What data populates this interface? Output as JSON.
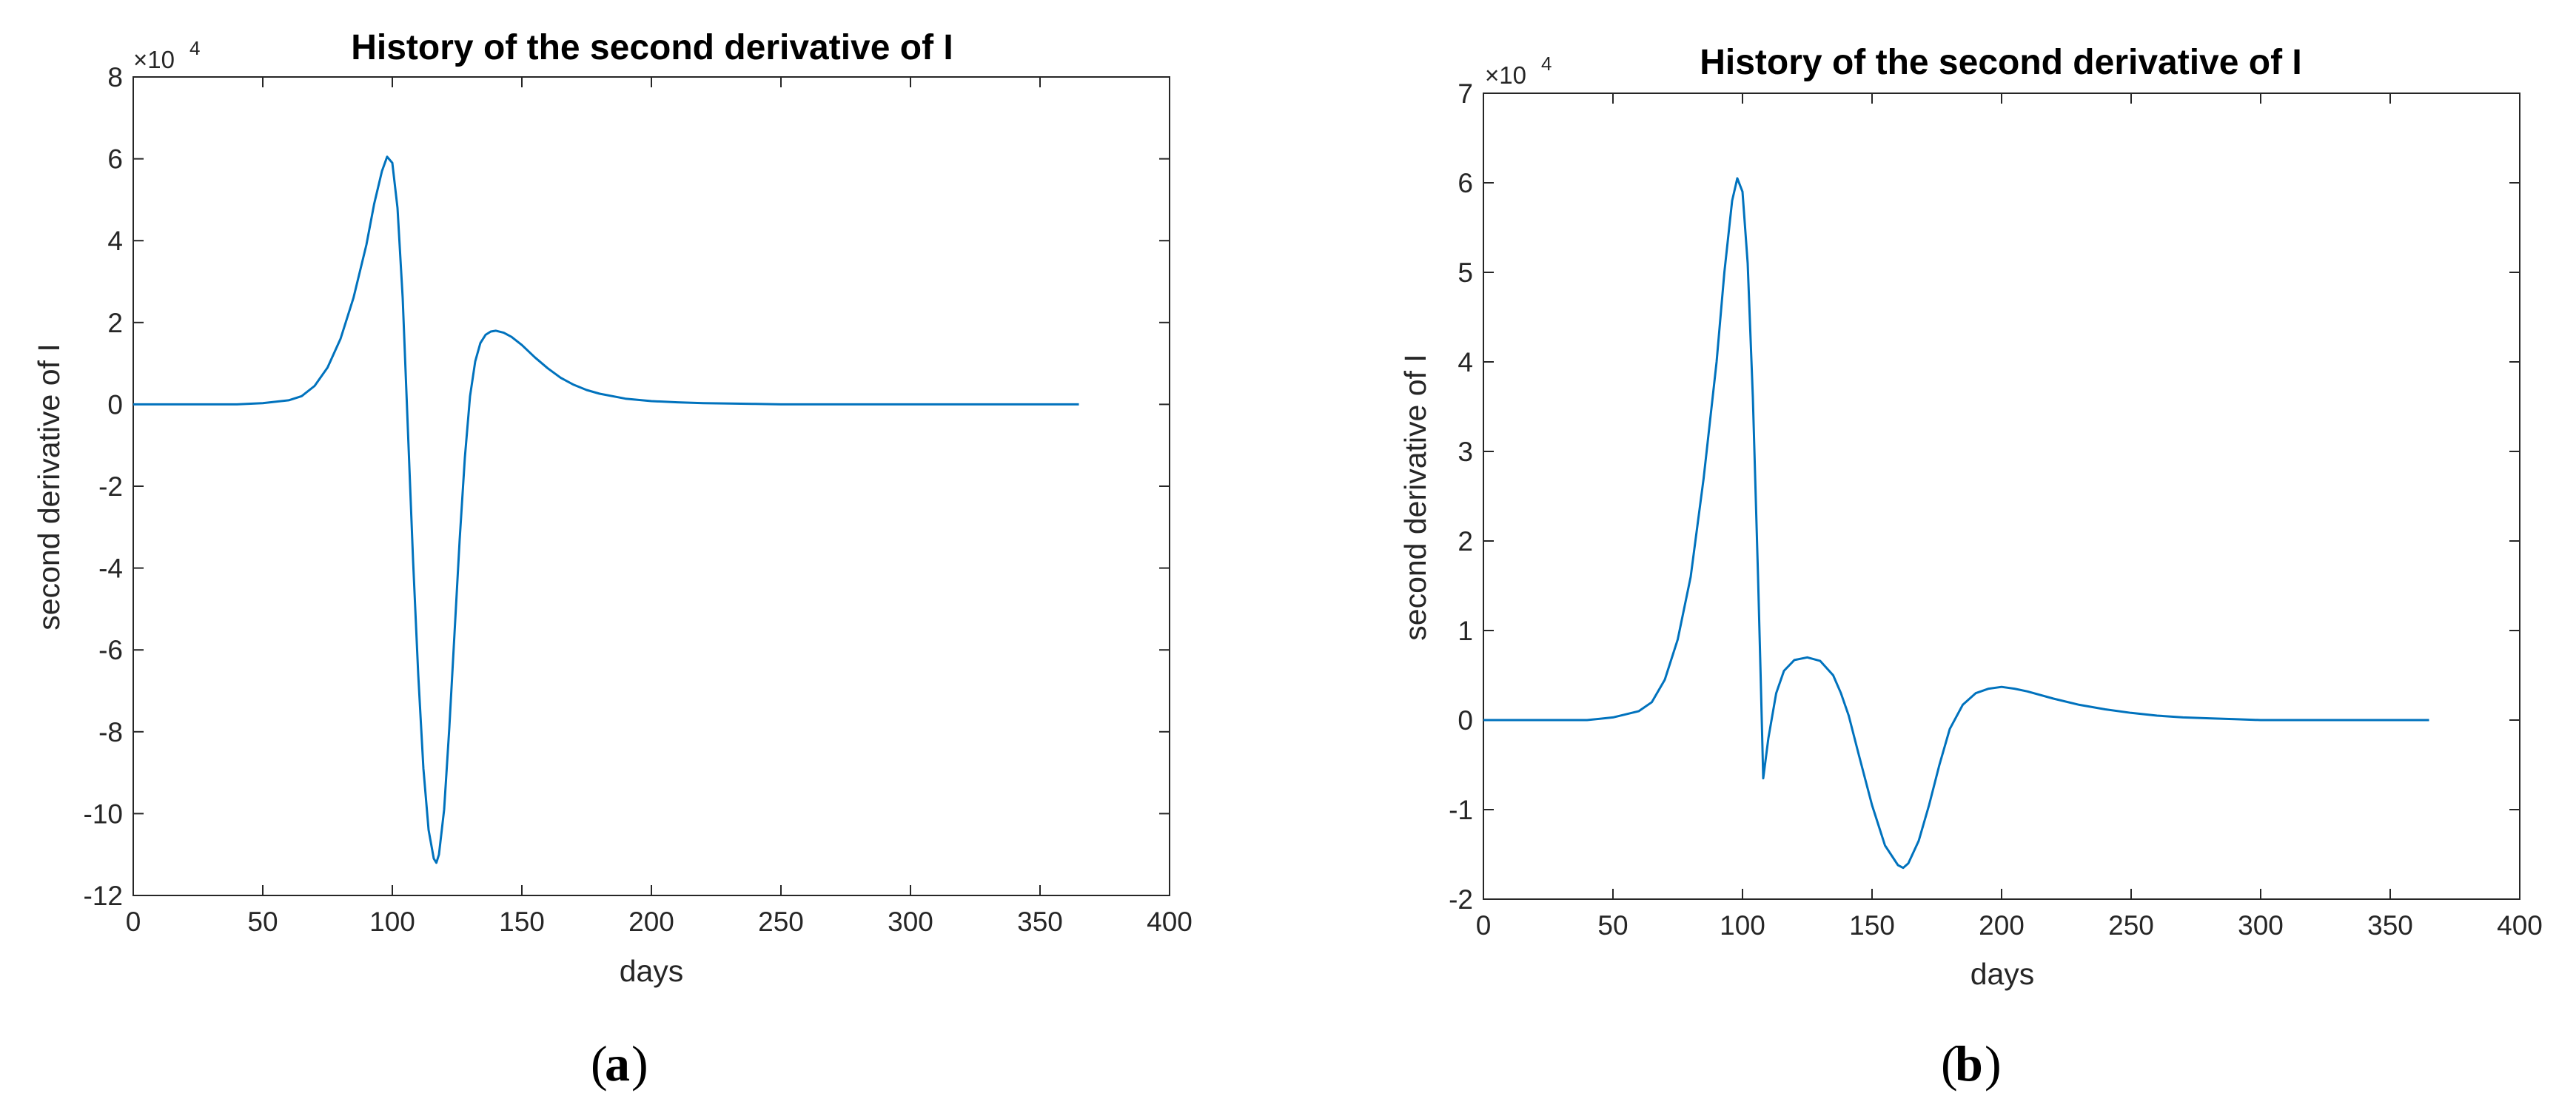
{
  "figure": {
    "background": "#ffffff",
    "line_color": "#0072BD",
    "axis_color": "#262626"
  },
  "chart_data": [
    {
      "type": "line",
      "panel_label": "a",
      "title": "History of the second derivative of I",
      "xlabel": "days",
      "ylabel": "second derivative of I",
      "y_exponent_base": "×10",
      "y_exponent_power": "4",
      "xlim": [
        0,
        400
      ],
      "ylim": [
        -12,
        8
      ],
      "y_scale_factor": 10000,
      "xticks": [
        0,
        50,
        100,
        150,
        200,
        250,
        300,
        350,
        400
      ],
      "yticks": [
        -12,
        -10,
        -8,
        -6,
        -4,
        -2,
        0,
        2,
        4,
        6,
        8
      ],
      "grid": false,
      "series": [
        {
          "color": "#0072BD",
          "x": [
            0,
            40,
            50,
            60,
            65,
            70,
            75,
            80,
            85,
            90,
            93,
            96,
            98,
            100,
            102,
            104,
            106,
            108,
            110,
            112,
            114,
            116,
            117,
            118,
            120,
            122,
            124,
            126,
            128,
            130,
            132,
            134,
            136,
            138,
            140,
            143,
            146,
            150,
            155,
            160,
            165,
            170,
            175,
            180,
            190,
            200,
            210,
            220,
            230,
            240,
            250,
            260,
            280,
            300,
            320,
            340,
            365
          ],
          "y": [
            0,
            0,
            0.03,
            0.1,
            0.2,
            0.45,
            0.9,
            1.6,
            2.6,
            3.9,
            4.9,
            5.7,
            6.05,
            5.9,
            4.8,
            2.6,
            -0.6,
            -3.8,
            -6.6,
            -8.9,
            -10.4,
            -11.1,
            -11.2,
            -11.0,
            -9.9,
            -7.9,
            -5.6,
            -3.3,
            -1.3,
            0.2,
            1.05,
            1.5,
            1.7,
            1.78,
            1.8,
            1.75,
            1.65,
            1.45,
            1.15,
            0.88,
            0.65,
            0.48,
            0.35,
            0.26,
            0.14,
            0.08,
            0.05,
            0.03,
            0.02,
            0.01,
            0.0,
            0,
            0,
            0,
            0,
            0,
            0
          ]
        }
      ]
    },
    {
      "type": "line",
      "panel_label": "b",
      "title": "History of the second derivative of I",
      "xlabel": "days",
      "ylabel": "second derivative of I",
      "y_exponent_base": "×10",
      "y_exponent_power": "4",
      "xlim": [
        0,
        400
      ],
      "ylim": [
        -2,
        7
      ],
      "y_scale_factor": 10000,
      "xticks": [
        0,
        50,
        100,
        150,
        200,
        250,
        300,
        350,
        400
      ],
      "yticks": [
        -2,
        -1,
        0,
        1,
        2,
        3,
        4,
        5,
        6,
        7
      ],
      "grid": false,
      "series": [
        {
          "color": "#0072BD",
          "x": [
            0,
            40,
            50,
            60,
            65,
            70,
            75,
            80,
            85,
            90,
            93,
            96,
            98,
            100,
            102,
            104,
            106,
            107,
            108,
            110,
            113,
            116,
            120,
            125,
            130,
            135,
            138,
            141,
            145,
            150,
            155,
            160,
            162,
            164,
            168,
            172,
            176,
            180,
            185,
            190,
            195,
            200,
            205,
            210,
            220,
            230,
            240,
            250,
            260,
            270,
            280,
            290,
            300,
            320,
            340,
            365
          ],
          "y": [
            0,
            0,
            0.03,
            0.1,
            0.2,
            0.45,
            0.9,
            1.6,
            2.7,
            4.0,
            5.0,
            5.8,
            6.05,
            5.9,
            5.1,
            3.6,
            1.6,
            0.5,
            -0.65,
            -0.2,
            0.3,
            0.55,
            0.67,
            0.7,
            0.66,
            0.5,
            0.3,
            0.05,
            -0.4,
            -0.95,
            -1.4,
            -1.62,
            -1.65,
            -1.6,
            -1.35,
            -0.95,
            -0.5,
            -0.1,
            0.17,
            0.3,
            0.35,
            0.37,
            0.35,
            0.32,
            0.24,
            0.17,
            0.12,
            0.08,
            0.05,
            0.03,
            0.02,
            0.01,
            0,
            0,
            0,
            0
          ]
        }
      ]
    }
  ]
}
